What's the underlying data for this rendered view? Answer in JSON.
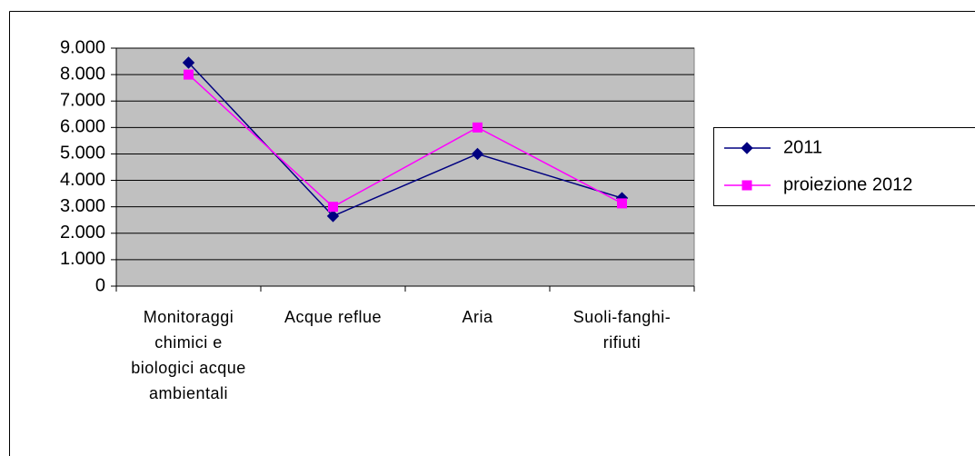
{
  "chart_data": {
    "type": "line",
    "categories": [
      "Monitoraggi chimici e biologici acque ambientali",
      "Acque reflue",
      "Aria",
      "Suoli-fanghi-rifiuti"
    ],
    "series": [
      {
        "name": "2011",
        "color": "#000080",
        "marker": "diamond",
        "values": [
          8450,
          2650,
          5000,
          3330
        ]
      },
      {
        "name": "proiezione 2012",
        "color": "#ff00ff",
        "marker": "square",
        "values": [
          8000,
          3000,
          6000,
          3130
        ]
      }
    ],
    "ylim": [
      0,
      9000
    ],
    "yticks": [
      0,
      {
        "value": 1000,
        "label": "1.000"
      },
      {
        "value": 2000,
        "label": "2.000"
      },
      {
        "value": 3000,
        "label": "3.000"
      },
      {
        "value": 4000,
        "label": "4.000"
      },
      {
        "value": 5000,
        "label": "5.000"
      },
      {
        "value": 6000,
        "label": "6.000"
      },
      {
        "value": 7000,
        "label": "7.000"
      },
      {
        "value": 8000,
        "label": "8.000"
      },
      {
        "value": 9000,
        "label": "9.000"
      }
    ],
    "grid": true,
    "plot_background": "#c0c0c0",
    "legend": "right"
  }
}
